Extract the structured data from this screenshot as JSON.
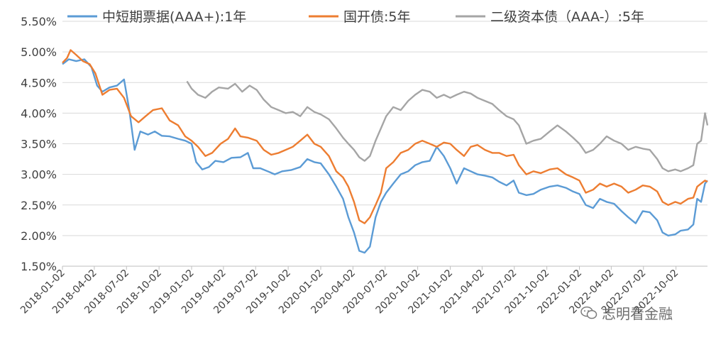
{
  "chart_data": {
    "type": "line",
    "title": "",
    "xlabel": "",
    "ylabel": "",
    "ylim": [
      1.5,
      5.5
    ],
    "y_ticks": [
      "1.50%",
      "2.00%",
      "2.50%",
      "3.00%",
      "3.50%",
      "4.00%",
      "4.50%",
      "5.00%",
      "5.50%"
    ],
    "x_ticks": [
      "2018-01-02",
      "2018-04-02",
      "2018-07-02",
      "2018-10-02",
      "2019-01-02",
      "2019-04-02",
      "2019-07-02",
      "2019-10-02",
      "2020-01-02",
      "2020-04-02",
      "2020-07-02",
      "2020-10-02",
      "2021-01-02",
      "2021-04-02",
      "2021-07-02",
      "2021-10-02",
      "2022-01-02",
      "2022-04-02",
      "2022-07-02",
      "2022-10-02"
    ],
    "grid": "horizontal",
    "legend_position": "top",
    "series": [
      {
        "name": "中短期票据(AAA+):1年",
        "color": "#5B9BD5",
        "points": [
          [
            "2018-01-02",
            4.8
          ],
          [
            "2018-01-20",
            4.88
          ],
          [
            "2018-02-10",
            4.85
          ],
          [
            "2018-03-05",
            4.88
          ],
          [
            "2018-03-25",
            4.75
          ],
          [
            "2018-04-10",
            4.45
          ],
          [
            "2018-04-25",
            4.35
          ],
          [
            "2018-05-15",
            4.42
          ],
          [
            "2018-06-05",
            4.45
          ],
          [
            "2018-06-25",
            4.55
          ],
          [
            "2018-07-10",
            4.05
          ],
          [
            "2018-07-25",
            3.4
          ],
          [
            "2018-08-10",
            3.7
          ],
          [
            "2018-09-01",
            3.65
          ],
          [
            "2018-09-20",
            3.7
          ],
          [
            "2018-10-10",
            3.63
          ],
          [
            "2018-11-01",
            3.62
          ],
          [
            "2018-11-25",
            3.58
          ],
          [
            "2018-12-15",
            3.55
          ],
          [
            "2019-01-02",
            3.5
          ],
          [
            "2019-01-15",
            3.2
          ],
          [
            "2019-02-01",
            3.08
          ],
          [
            "2019-02-20",
            3.12
          ],
          [
            "2019-03-10",
            3.22
          ],
          [
            "2019-04-02",
            3.2
          ],
          [
            "2019-04-25",
            3.27
          ],
          [
            "2019-05-20",
            3.28
          ],
          [
            "2019-06-10",
            3.35
          ],
          [
            "2019-06-25",
            3.1
          ],
          [
            "2019-07-15",
            3.1
          ],
          [
            "2019-08-05",
            3.05
          ],
          [
            "2019-08-25",
            3.0
          ],
          [
            "2019-09-15",
            3.05
          ],
          [
            "2019-10-10",
            3.07
          ],
          [
            "2019-11-05",
            3.12
          ],
          [
            "2019-11-25",
            3.25
          ],
          [
            "2019-12-15",
            3.2
          ],
          [
            "2020-01-02",
            3.18
          ],
          [
            "2020-01-25",
            3.0
          ],
          [
            "2020-02-15",
            2.8
          ],
          [
            "2020-03-05",
            2.6
          ],
          [
            "2020-03-20",
            2.3
          ],
          [
            "2020-04-05",
            2.05
          ],
          [
            "2020-04-20",
            1.75
          ],
          [
            "2020-05-05",
            1.72
          ],
          [
            "2020-05-20",
            1.82
          ],
          [
            "2020-06-05",
            2.3
          ],
          [
            "2020-06-20",
            2.55
          ],
          [
            "2020-07-05",
            2.7
          ],
          [
            "2020-07-25",
            2.85
          ],
          [
            "2020-08-15",
            3.0
          ],
          [
            "2020-09-05",
            3.05
          ],
          [
            "2020-09-25",
            3.15
          ],
          [
            "2020-10-15",
            3.2
          ],
          [
            "2020-11-05",
            3.22
          ],
          [
            "2020-11-25",
            3.45
          ],
          [
            "2020-12-15",
            3.3
          ],
          [
            "2021-01-02",
            3.1
          ],
          [
            "2021-01-20",
            2.85
          ],
          [
            "2021-02-10",
            3.1
          ],
          [
            "2021-03-01",
            3.05
          ],
          [
            "2021-03-20",
            3.0
          ],
          [
            "2021-04-10",
            2.98
          ],
          [
            "2021-05-01",
            2.95
          ],
          [
            "2021-05-20",
            2.88
          ],
          [
            "2021-06-10",
            2.82
          ],
          [
            "2021-06-30",
            2.9
          ],
          [
            "2021-07-15",
            2.7
          ],
          [
            "2021-08-05",
            2.66
          ],
          [
            "2021-08-25",
            2.68
          ],
          [
            "2021-09-15",
            2.75
          ],
          [
            "2021-10-10",
            2.8
          ],
          [
            "2021-11-01",
            2.82
          ],
          [
            "2021-11-25",
            2.78
          ],
          [
            "2021-12-15",
            2.72
          ],
          [
            "2022-01-02",
            2.68
          ],
          [
            "2022-01-20",
            2.5
          ],
          [
            "2022-02-10",
            2.45
          ],
          [
            "2022-03-01",
            2.6
          ],
          [
            "2022-03-20",
            2.55
          ],
          [
            "2022-04-10",
            2.52
          ],
          [
            "2022-05-01",
            2.4
          ],
          [
            "2022-05-20",
            2.3
          ],
          [
            "2022-06-10",
            2.2
          ],
          [
            "2022-06-30",
            2.4
          ],
          [
            "2022-07-20",
            2.38
          ],
          [
            "2022-08-10",
            2.25
          ],
          [
            "2022-08-25",
            2.05
          ],
          [
            "2022-09-10",
            2.0
          ],
          [
            "2022-09-30",
            2.02
          ],
          [
            "2022-10-15",
            2.08
          ],
          [
            "2022-11-05",
            2.1
          ],
          [
            "2022-11-20",
            2.18
          ],
          [
            "2022-12-01",
            2.6
          ],
          [
            "2022-12-12",
            2.55
          ],
          [
            "2022-12-23",
            2.85
          ],
          [
            "2022-12-30",
            2.9
          ]
        ]
      },
      {
        "name": "国开债:5年",
        "color": "#ED7D31",
        "points": [
          [
            "2018-01-02",
            4.82
          ],
          [
            "2018-01-15",
            4.9
          ],
          [
            "2018-01-25",
            5.03
          ],
          [
            "2018-02-10",
            4.95
          ],
          [
            "2018-03-01",
            4.85
          ],
          [
            "2018-03-20",
            4.8
          ],
          [
            "2018-04-05",
            4.65
          ],
          [
            "2018-04-25",
            4.3
          ],
          [
            "2018-05-15",
            4.38
          ],
          [
            "2018-06-05",
            4.4
          ],
          [
            "2018-06-25",
            4.25
          ],
          [
            "2018-07-15",
            3.95
          ],
          [
            "2018-08-05",
            3.85
          ],
          [
            "2018-08-25",
            3.95
          ],
          [
            "2018-09-15",
            4.05
          ],
          [
            "2018-10-10",
            4.08
          ],
          [
            "2018-11-01",
            3.88
          ],
          [
            "2018-11-25",
            3.8
          ],
          [
            "2018-12-15",
            3.62
          ],
          [
            "2019-01-02",
            3.55
          ],
          [
            "2019-01-20",
            3.45
          ],
          [
            "2019-02-10",
            3.3
          ],
          [
            "2019-03-01",
            3.35
          ],
          [
            "2019-03-25",
            3.5
          ],
          [
            "2019-04-15",
            3.58
          ],
          [
            "2019-05-05",
            3.75
          ],
          [
            "2019-05-20",
            3.62
          ],
          [
            "2019-06-10",
            3.6
          ],
          [
            "2019-07-05",
            3.55
          ],
          [
            "2019-07-25",
            3.4
          ],
          [
            "2019-08-15",
            3.32
          ],
          [
            "2019-09-05",
            3.35
          ],
          [
            "2019-09-25",
            3.4
          ],
          [
            "2019-10-15",
            3.45
          ],
          [
            "2019-11-05",
            3.55
          ],
          [
            "2019-11-25",
            3.65
          ],
          [
            "2019-12-15",
            3.5
          ],
          [
            "2020-01-02",
            3.45
          ],
          [
            "2020-01-25",
            3.3
          ],
          [
            "2020-02-15",
            3.05
          ],
          [
            "2020-03-05",
            2.95
          ],
          [
            "2020-03-20",
            2.8
          ],
          [
            "2020-04-05",
            2.55
          ],
          [
            "2020-04-20",
            2.25
          ],
          [
            "2020-05-05",
            2.2
          ],
          [
            "2020-05-20",
            2.3
          ],
          [
            "2020-06-05",
            2.5
          ],
          [
            "2020-06-20",
            2.7
          ],
          [
            "2020-07-05",
            3.1
          ],
          [
            "2020-07-25",
            3.2
          ],
          [
            "2020-08-15",
            3.35
          ],
          [
            "2020-09-05",
            3.4
          ],
          [
            "2020-09-25",
            3.5
          ],
          [
            "2020-10-15",
            3.55
          ],
          [
            "2020-11-05",
            3.5
          ],
          [
            "2020-11-25",
            3.45
          ],
          [
            "2020-12-15",
            3.52
          ],
          [
            "2021-01-02",
            3.5
          ],
          [
            "2021-01-20",
            3.4
          ],
          [
            "2021-02-10",
            3.3
          ],
          [
            "2021-03-01",
            3.45
          ],
          [
            "2021-03-20",
            3.48
          ],
          [
            "2021-04-10",
            3.4
          ],
          [
            "2021-05-01",
            3.35
          ],
          [
            "2021-05-20",
            3.35
          ],
          [
            "2021-06-10",
            3.3
          ],
          [
            "2021-06-30",
            3.32
          ],
          [
            "2021-07-15",
            3.15
          ],
          [
            "2021-08-05",
            3.0
          ],
          [
            "2021-08-25",
            3.05
          ],
          [
            "2021-09-15",
            3.02
          ],
          [
            "2021-10-10",
            3.08
          ],
          [
            "2021-11-01",
            3.1
          ],
          [
            "2021-11-25",
            3.0
          ],
          [
            "2021-12-15",
            2.95
          ],
          [
            "2022-01-02",
            2.9
          ],
          [
            "2022-01-20",
            2.7
          ],
          [
            "2022-02-10",
            2.75
          ],
          [
            "2022-03-01",
            2.85
          ],
          [
            "2022-03-20",
            2.8
          ],
          [
            "2022-04-10",
            2.85
          ],
          [
            "2022-05-01",
            2.8
          ],
          [
            "2022-05-20",
            2.7
          ],
          [
            "2022-06-10",
            2.75
          ],
          [
            "2022-06-30",
            2.82
          ],
          [
            "2022-07-20",
            2.8
          ],
          [
            "2022-08-10",
            2.72
          ],
          [
            "2022-08-25",
            2.55
          ],
          [
            "2022-09-10",
            2.5
          ],
          [
            "2022-09-30",
            2.55
          ],
          [
            "2022-10-15",
            2.52
          ],
          [
            "2022-11-05",
            2.6
          ],
          [
            "2022-11-20",
            2.62
          ],
          [
            "2022-12-01",
            2.8
          ],
          [
            "2022-12-12",
            2.85
          ],
          [
            "2022-12-23",
            2.9
          ],
          [
            "2022-12-30",
            2.88
          ]
        ]
      },
      {
        "name": "二级资本债（AAA-）:5年",
        "color": "#A5A5A5",
        "points": [
          [
            "2018-12-20",
            4.52
          ],
          [
            "2019-01-02",
            4.4
          ],
          [
            "2019-01-20",
            4.3
          ],
          [
            "2019-02-10",
            4.25
          ],
          [
            "2019-03-01",
            4.35
          ],
          [
            "2019-03-20",
            4.42
          ],
          [
            "2019-04-15",
            4.4
          ],
          [
            "2019-05-05",
            4.48
          ],
          [
            "2019-05-25",
            4.35
          ],
          [
            "2019-06-15",
            4.45
          ],
          [
            "2019-07-05",
            4.38
          ],
          [
            "2019-07-25",
            4.22
          ],
          [
            "2019-08-15",
            4.1
          ],
          [
            "2019-09-05",
            4.05
          ],
          [
            "2019-09-25",
            4.0
          ],
          [
            "2019-10-15",
            4.02
          ],
          [
            "2019-11-05",
            3.95
          ],
          [
            "2019-11-25",
            4.1
          ],
          [
            "2019-12-15",
            4.02
          ],
          [
            "2020-01-02",
            3.98
          ],
          [
            "2020-01-25",
            3.9
          ],
          [
            "2020-02-15",
            3.75
          ],
          [
            "2020-03-05",
            3.6
          ],
          [
            "2020-03-20",
            3.5
          ],
          [
            "2020-04-05",
            3.4
          ],
          [
            "2020-04-20",
            3.28
          ],
          [
            "2020-05-05",
            3.22
          ],
          [
            "2020-05-20",
            3.3
          ],
          [
            "2020-06-05",
            3.55
          ],
          [
            "2020-06-20",
            3.75
          ],
          [
            "2020-07-05",
            3.95
          ],
          [
            "2020-07-25",
            4.1
          ],
          [
            "2020-08-15",
            4.05
          ],
          [
            "2020-09-05",
            4.2
          ],
          [
            "2020-09-25",
            4.3
          ],
          [
            "2020-10-15",
            4.38
          ],
          [
            "2020-11-05",
            4.35
          ],
          [
            "2020-11-25",
            4.25
          ],
          [
            "2020-12-15",
            4.3
          ],
          [
            "2021-01-02",
            4.25
          ],
          [
            "2021-01-20",
            4.3
          ],
          [
            "2021-02-10",
            4.35
          ],
          [
            "2021-03-01",
            4.32
          ],
          [
            "2021-03-20",
            4.25
          ],
          [
            "2021-04-10",
            4.2
          ],
          [
            "2021-05-01",
            4.15
          ],
          [
            "2021-05-20",
            4.05
          ],
          [
            "2021-06-10",
            3.95
          ],
          [
            "2021-06-30",
            3.9
          ],
          [
            "2021-07-15",
            3.8
          ],
          [
            "2021-08-05",
            3.5
          ],
          [
            "2021-08-25",
            3.55
          ],
          [
            "2021-09-15",
            3.58
          ],
          [
            "2021-10-10",
            3.7
          ],
          [
            "2021-11-01",
            3.8
          ],
          [
            "2021-11-25",
            3.7
          ],
          [
            "2021-12-15",
            3.6
          ],
          [
            "2022-01-02",
            3.5
          ],
          [
            "2022-01-20",
            3.35
          ],
          [
            "2022-02-10",
            3.4
          ],
          [
            "2022-03-01",
            3.5
          ],
          [
            "2022-03-20",
            3.62
          ],
          [
            "2022-04-10",
            3.55
          ],
          [
            "2022-05-01",
            3.5
          ],
          [
            "2022-05-20",
            3.4
          ],
          [
            "2022-06-10",
            3.45
          ],
          [
            "2022-06-30",
            3.42
          ],
          [
            "2022-07-20",
            3.4
          ],
          [
            "2022-08-10",
            3.25
          ],
          [
            "2022-08-25",
            3.1
          ],
          [
            "2022-09-10",
            3.05
          ],
          [
            "2022-09-30",
            3.08
          ],
          [
            "2022-10-15",
            3.05
          ],
          [
            "2022-11-05",
            3.1
          ],
          [
            "2022-11-20",
            3.15
          ],
          [
            "2022-12-01",
            3.5
          ],
          [
            "2022-12-12",
            3.55
          ],
          [
            "2022-12-23",
            4.0
          ],
          [
            "2022-12-30",
            3.8
          ]
        ]
      }
    ]
  },
  "watermark": {
    "text": "志明看金融",
    "icon": "wechat-icon"
  }
}
